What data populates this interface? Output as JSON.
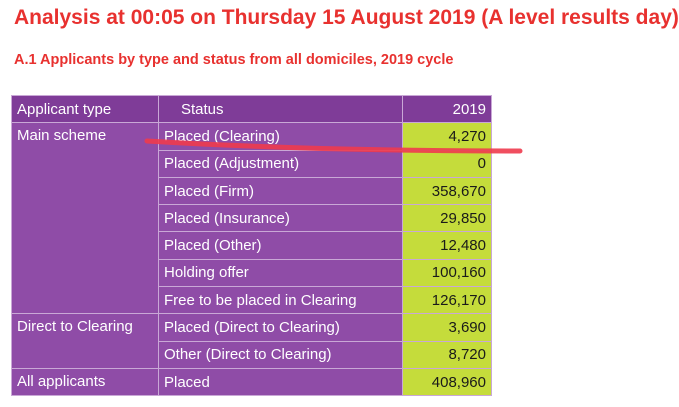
{
  "title": "Analysis at 00:05 on Thursday 15 August 2019 (A level results day)",
  "subtitle": "A.1 Applicants by type and status from all domiciles, 2019 cycle",
  "table": {
    "headers": [
      "Applicant type",
      "Status",
      "2019"
    ],
    "groups": [
      {
        "type": "Main scheme",
        "rows": [
          {
            "status": "Placed (Clearing)",
            "value": "4,270"
          },
          {
            "status": "Placed (Adjustment)",
            "value": "0"
          },
          {
            "status": "Placed (Firm)",
            "value": "358,670"
          },
          {
            "status": "Placed (Insurance)",
            "value": "29,850"
          },
          {
            "status": "Placed (Other)",
            "value": "12,480"
          },
          {
            "status": "Holding offer",
            "value": "100,160"
          },
          {
            "status": "Free to be placed in Clearing",
            "value": "126,170"
          }
        ]
      },
      {
        "type": "Direct to Clearing",
        "rows": [
          {
            "status": "Placed (Direct to Clearing)",
            "value": "3,690"
          },
          {
            "status": "Other (Direct to Clearing)",
            "value": "8,720"
          }
        ]
      },
      {
        "type": "All applicants",
        "rows": [
          {
            "status": "Placed",
            "value": "408,960"
          }
        ]
      }
    ]
  },
  "colors": {
    "title": "#e8312f",
    "header_bg": "#7f3c98",
    "cell_bg": "#8f4ca7",
    "value_bg": "#c5dc3b",
    "annotation_stroke": "#ee3b4e"
  }
}
